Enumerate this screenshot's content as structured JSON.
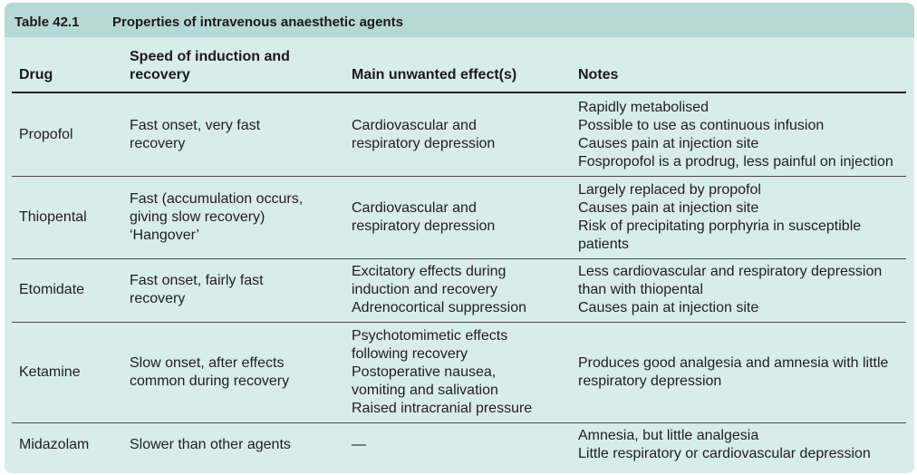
{
  "table": {
    "number": "Table 42.1",
    "title": "Properties of intravenous anaesthetic agents",
    "headers": {
      "drug": "Drug",
      "speed": [
        "Speed of induction and",
        "recovery"
      ],
      "effects": "Main unwanted effect(s)",
      "notes": "Notes"
    },
    "rows": [
      {
        "drug": "Propofol",
        "speed": [
          "Fast onset, very fast",
          "recovery"
        ],
        "effects": [
          "Cardiovascular and",
          "respiratory depression"
        ],
        "notes": [
          "Rapidly metabolised",
          "Possible to use as continuous infusion",
          "Causes pain at injection site",
          "Fospropofol is a prodrug, less painful on injection"
        ]
      },
      {
        "drug": "Thiopental",
        "speed": [
          "Fast (accumulation occurs,",
          "giving slow recovery)",
          "‘Hangover’"
        ],
        "effects": [
          "Cardiovascular and",
          "respiratory depression"
        ],
        "notes": [
          "Largely replaced by propofol",
          "Causes pain at injection site",
          "Risk of precipitating porphyria in susceptible",
          "patients"
        ]
      },
      {
        "drug": "Etomidate",
        "speed": [
          "Fast onset, fairly fast",
          "recovery"
        ],
        "effects": [
          "Excitatory effects during",
          "induction and recovery",
          "Adrenocortical suppression"
        ],
        "notes": [
          "Less cardiovascular and respiratory depression",
          "than with thiopental",
          "Causes pain at injection site"
        ]
      },
      {
        "drug": "Ketamine",
        "speed": [
          "Slow onset, after effects",
          "common during recovery"
        ],
        "effects": [
          "Psychotomimetic effects",
          "following recovery",
          "Postoperative nausea,",
          "vomiting and salivation",
          "Raised intracranial pressure"
        ],
        "notes": [
          "Produces good analgesia and amnesia with little",
          "respiratory depression"
        ]
      },
      {
        "drug": "Midazolam",
        "speed": [
          "Slower than other agents"
        ],
        "effects": [
          "—"
        ],
        "notes": [
          "Amnesia, but little analgesia",
          "Little respiratory or cardiovascular depression"
        ]
      }
    ]
  },
  "colors": {
    "panel_bg": "#d8ece9",
    "title_bar_bg": "#b7d9d3",
    "rule": "#4a4a4a"
  }
}
